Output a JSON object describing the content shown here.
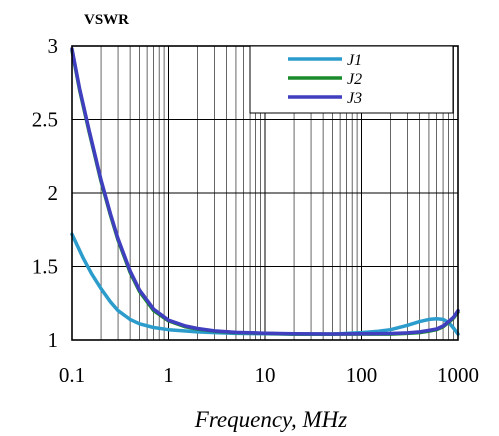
{
  "chart_data": {
    "type": "line",
    "title": "",
    "ylabel": "VSWR",
    "xlabel": "Frequency, MHz",
    "xscale": "log",
    "xlim": [
      0.1,
      1000
    ],
    "ylim": [
      1,
      3
    ],
    "xticks": [
      0.1,
      1,
      10,
      100,
      1000
    ],
    "xtick_labels": [
      "0.1",
      "1",
      "10",
      "100",
      "1000"
    ],
    "yticks": [
      1,
      1.5,
      2,
      2.5,
      3
    ],
    "ytick_labels": [
      "1",
      "1.5",
      "2",
      "2.5",
      "3"
    ],
    "grid": true,
    "legend_position": "top-right",
    "series": [
      {
        "name": "J1",
        "color": "#2b9ccc",
        "x": [
          0.1,
          0.13,
          0.16,
          0.2,
          0.25,
          0.3,
          0.4,
          0.5,
          0.7,
          1,
          2,
          3,
          5,
          10,
          20,
          50,
          100,
          150,
          200,
          300,
          400,
          500,
          600,
          700,
          800,
          900,
          1000
        ],
        "y": [
          1.72,
          1.56,
          1.45,
          1.35,
          1.26,
          1.2,
          1.14,
          1.11,
          1.085,
          1.07,
          1.055,
          1.05,
          1.045,
          1.042,
          1.04,
          1.04,
          1.05,
          1.06,
          1.07,
          1.1,
          1.125,
          1.14,
          1.145,
          1.14,
          1.12,
          1.08,
          1.04
        ]
      },
      {
        "name": "J2",
        "color": "#1a8a2a",
        "x": [
          0.1,
          0.12,
          0.15,
          0.2,
          0.25,
          0.3,
          0.4,
          0.5,
          0.7,
          1,
          1.5,
          2,
          3,
          5,
          10,
          20,
          50,
          100,
          200,
          300,
          400,
          500,
          600,
          700,
          800,
          900,
          1000
        ],
        "y": [
          2.97,
          2.7,
          2.42,
          2.08,
          1.85,
          1.68,
          1.46,
          1.33,
          1.2,
          1.13,
          1.09,
          1.075,
          1.06,
          1.05,
          1.045,
          1.04,
          1.04,
          1.04,
          1.04,
          1.045,
          1.05,
          1.06,
          1.07,
          1.09,
          1.12,
          1.15,
          1.19
        ]
      },
      {
        "name": "J3",
        "color": "#3f3fbf",
        "x": [
          0.1,
          0.12,
          0.15,
          0.2,
          0.25,
          0.3,
          0.4,
          0.5,
          0.7,
          1,
          1.5,
          2,
          3,
          5,
          10,
          20,
          50,
          100,
          200,
          300,
          400,
          500,
          600,
          700,
          800,
          900,
          1000
        ],
        "y": [
          2.98,
          2.71,
          2.43,
          2.09,
          1.86,
          1.69,
          1.47,
          1.34,
          1.21,
          1.135,
          1.095,
          1.078,
          1.062,
          1.052,
          1.046,
          1.042,
          1.041,
          1.042,
          1.044,
          1.048,
          1.055,
          1.065,
          1.075,
          1.095,
          1.125,
          1.155,
          1.2
        ]
      }
    ]
  }
}
